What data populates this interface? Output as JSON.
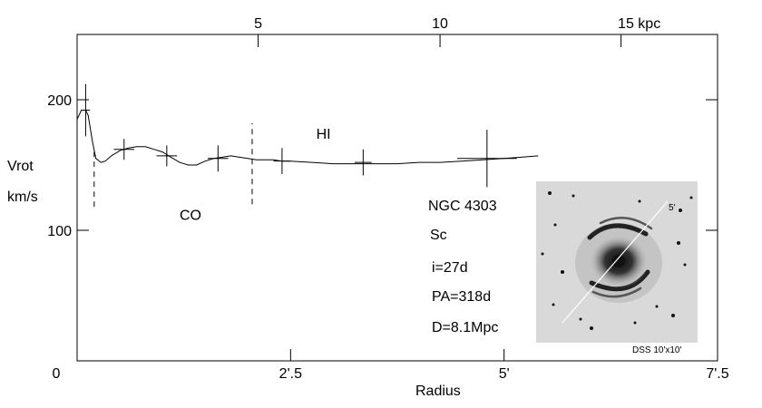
{
  "chart_data": {
    "type": "line",
    "xlabel": "Radius",
    "ylabel_line1": "Vrot",
    "ylabel_line2": "km/s",
    "xlim": [
      0,
      7.5
    ],
    "ylim": [
      0,
      250
    ],
    "x_ticks": [
      {
        "value": 0,
        "label": "0"
      },
      {
        "value": 2.5,
        "label": "2'.5"
      },
      {
        "value": 5,
        "label": "5'"
      },
      {
        "value": 7.5,
        "label": "7'.5"
      }
    ],
    "y_ticks": [
      {
        "value": 0,
        "label": ""
      },
      {
        "value": 100,
        "label": "100"
      },
      {
        "value": 200,
        "label": "200"
      }
    ],
    "top_axis_ticks": [
      {
        "value": 2.12,
        "label": "5"
      },
      {
        "value": 4.25,
        "label": "10"
      },
      {
        "value": 6.37,
        "label": "15 kpc"
      }
    ],
    "curve": {
      "x": [
        0.0,
        0.05,
        0.1,
        0.13,
        0.18,
        0.22,
        0.28,
        0.33,
        0.4,
        0.5,
        0.6,
        0.7,
        0.8,
        0.9,
        1.0,
        1.1,
        1.2,
        1.3,
        1.4,
        1.5,
        1.6,
        1.7,
        1.8,
        1.9,
        2.0,
        2.1,
        2.2,
        2.3,
        2.4,
        2.5,
        2.75,
        3.0,
        3.25,
        3.5,
        3.75,
        4.0,
        4.25,
        4.5,
        4.75,
        5.0,
        5.2,
        5.4
      ],
      "y": [
        185,
        192,
        192,
        188,
        168,
        155,
        152,
        153,
        157,
        161,
        163,
        164,
        164,
        162,
        160,
        156,
        152,
        150,
        150,
        153,
        155,
        156,
        157,
        156,
        155,
        154,
        154,
        154,
        153,
        153,
        152,
        151,
        151,
        151,
        151,
        152,
        152,
        153,
        154,
        155,
        156,
        157
      ]
    },
    "error_points": [
      {
        "x": 0.1,
        "y": 192,
        "xerr": 0.05,
        "yerr": 20
      },
      {
        "x": 0.55,
        "y": 162,
        "xerr": 0.12,
        "yerr": 8
      },
      {
        "x": 1.05,
        "y": 157,
        "xerr": 0.12,
        "yerr": 8
      },
      {
        "x": 1.65,
        "y": 155,
        "xerr": 0.12,
        "yerr": 10
      },
      {
        "x": 2.4,
        "y": 153,
        "xerr": 0.1,
        "yerr": 10
      },
      {
        "x": 3.35,
        "y": 152,
        "xerr": 0.1,
        "yerr": 10
      },
      {
        "x": 4.8,
        "y": 155,
        "xerr": 0.35,
        "yerr": 22
      }
    ],
    "dashed_lines": [
      {
        "x": 0.2,
        "y1": 118,
        "y2": 160
      },
      {
        "x": 2.05,
        "y1": 120,
        "y2": 182
      }
    ],
    "annotations": [
      {
        "text": "CO",
        "x": 1.2,
        "y": 108
      },
      {
        "text": "HI",
        "x": 2.8,
        "y": 170
      }
    ],
    "info_lines": [
      "NGC 4303",
      "Sc",
      "i=27d",
      "PA=318d",
      "D=8.1Mpc"
    ],
    "grid": false
  },
  "inset": {
    "caption": "DSS 10'x10'",
    "slit_label": "5'",
    "background_color": "#d9d9d9"
  }
}
